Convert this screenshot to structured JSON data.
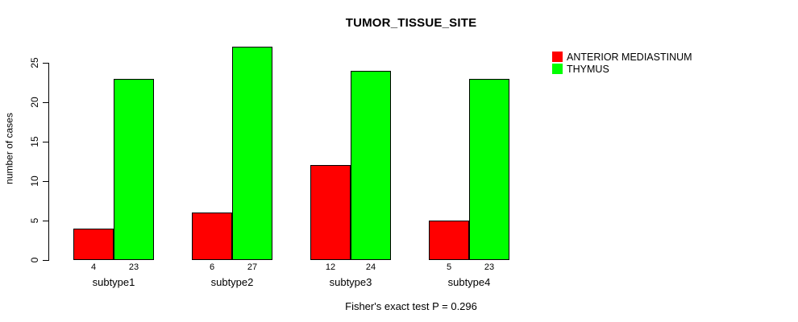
{
  "chart_data": {
    "type": "bar",
    "title": "TUMOR_TISSUE_SITE",
    "ylabel": "number of cases",
    "xlabel": "",
    "categories": [
      "subtype1",
      "subtype2",
      "subtype3",
      "subtype4"
    ],
    "series": [
      {
        "name": "ANTERIOR MEDIASTINUM",
        "color": "#ff0000",
        "values": [
          4,
          6,
          12,
          5
        ]
      },
      {
        "name": "THYMUS",
        "color": "#00ff00",
        "values": [
          23,
          27,
          24,
          23
        ]
      }
    ],
    "bar_value_labels": [
      [
        "4",
        "23"
      ],
      [
        "6",
        "27"
      ],
      [
        "12",
        "24"
      ],
      [
        "5",
        "23"
      ]
    ],
    "yticks": [
      0,
      5,
      10,
      15,
      20,
      25
    ],
    "ylim": [
      0,
      27
    ],
    "grid": false,
    "legend_position": "top-right",
    "annotation": "Fisher's exact test P = 0.296",
    "colors": {
      "bar_border": "#000000",
      "text": "#000000",
      "background": "#ffffff"
    }
  }
}
